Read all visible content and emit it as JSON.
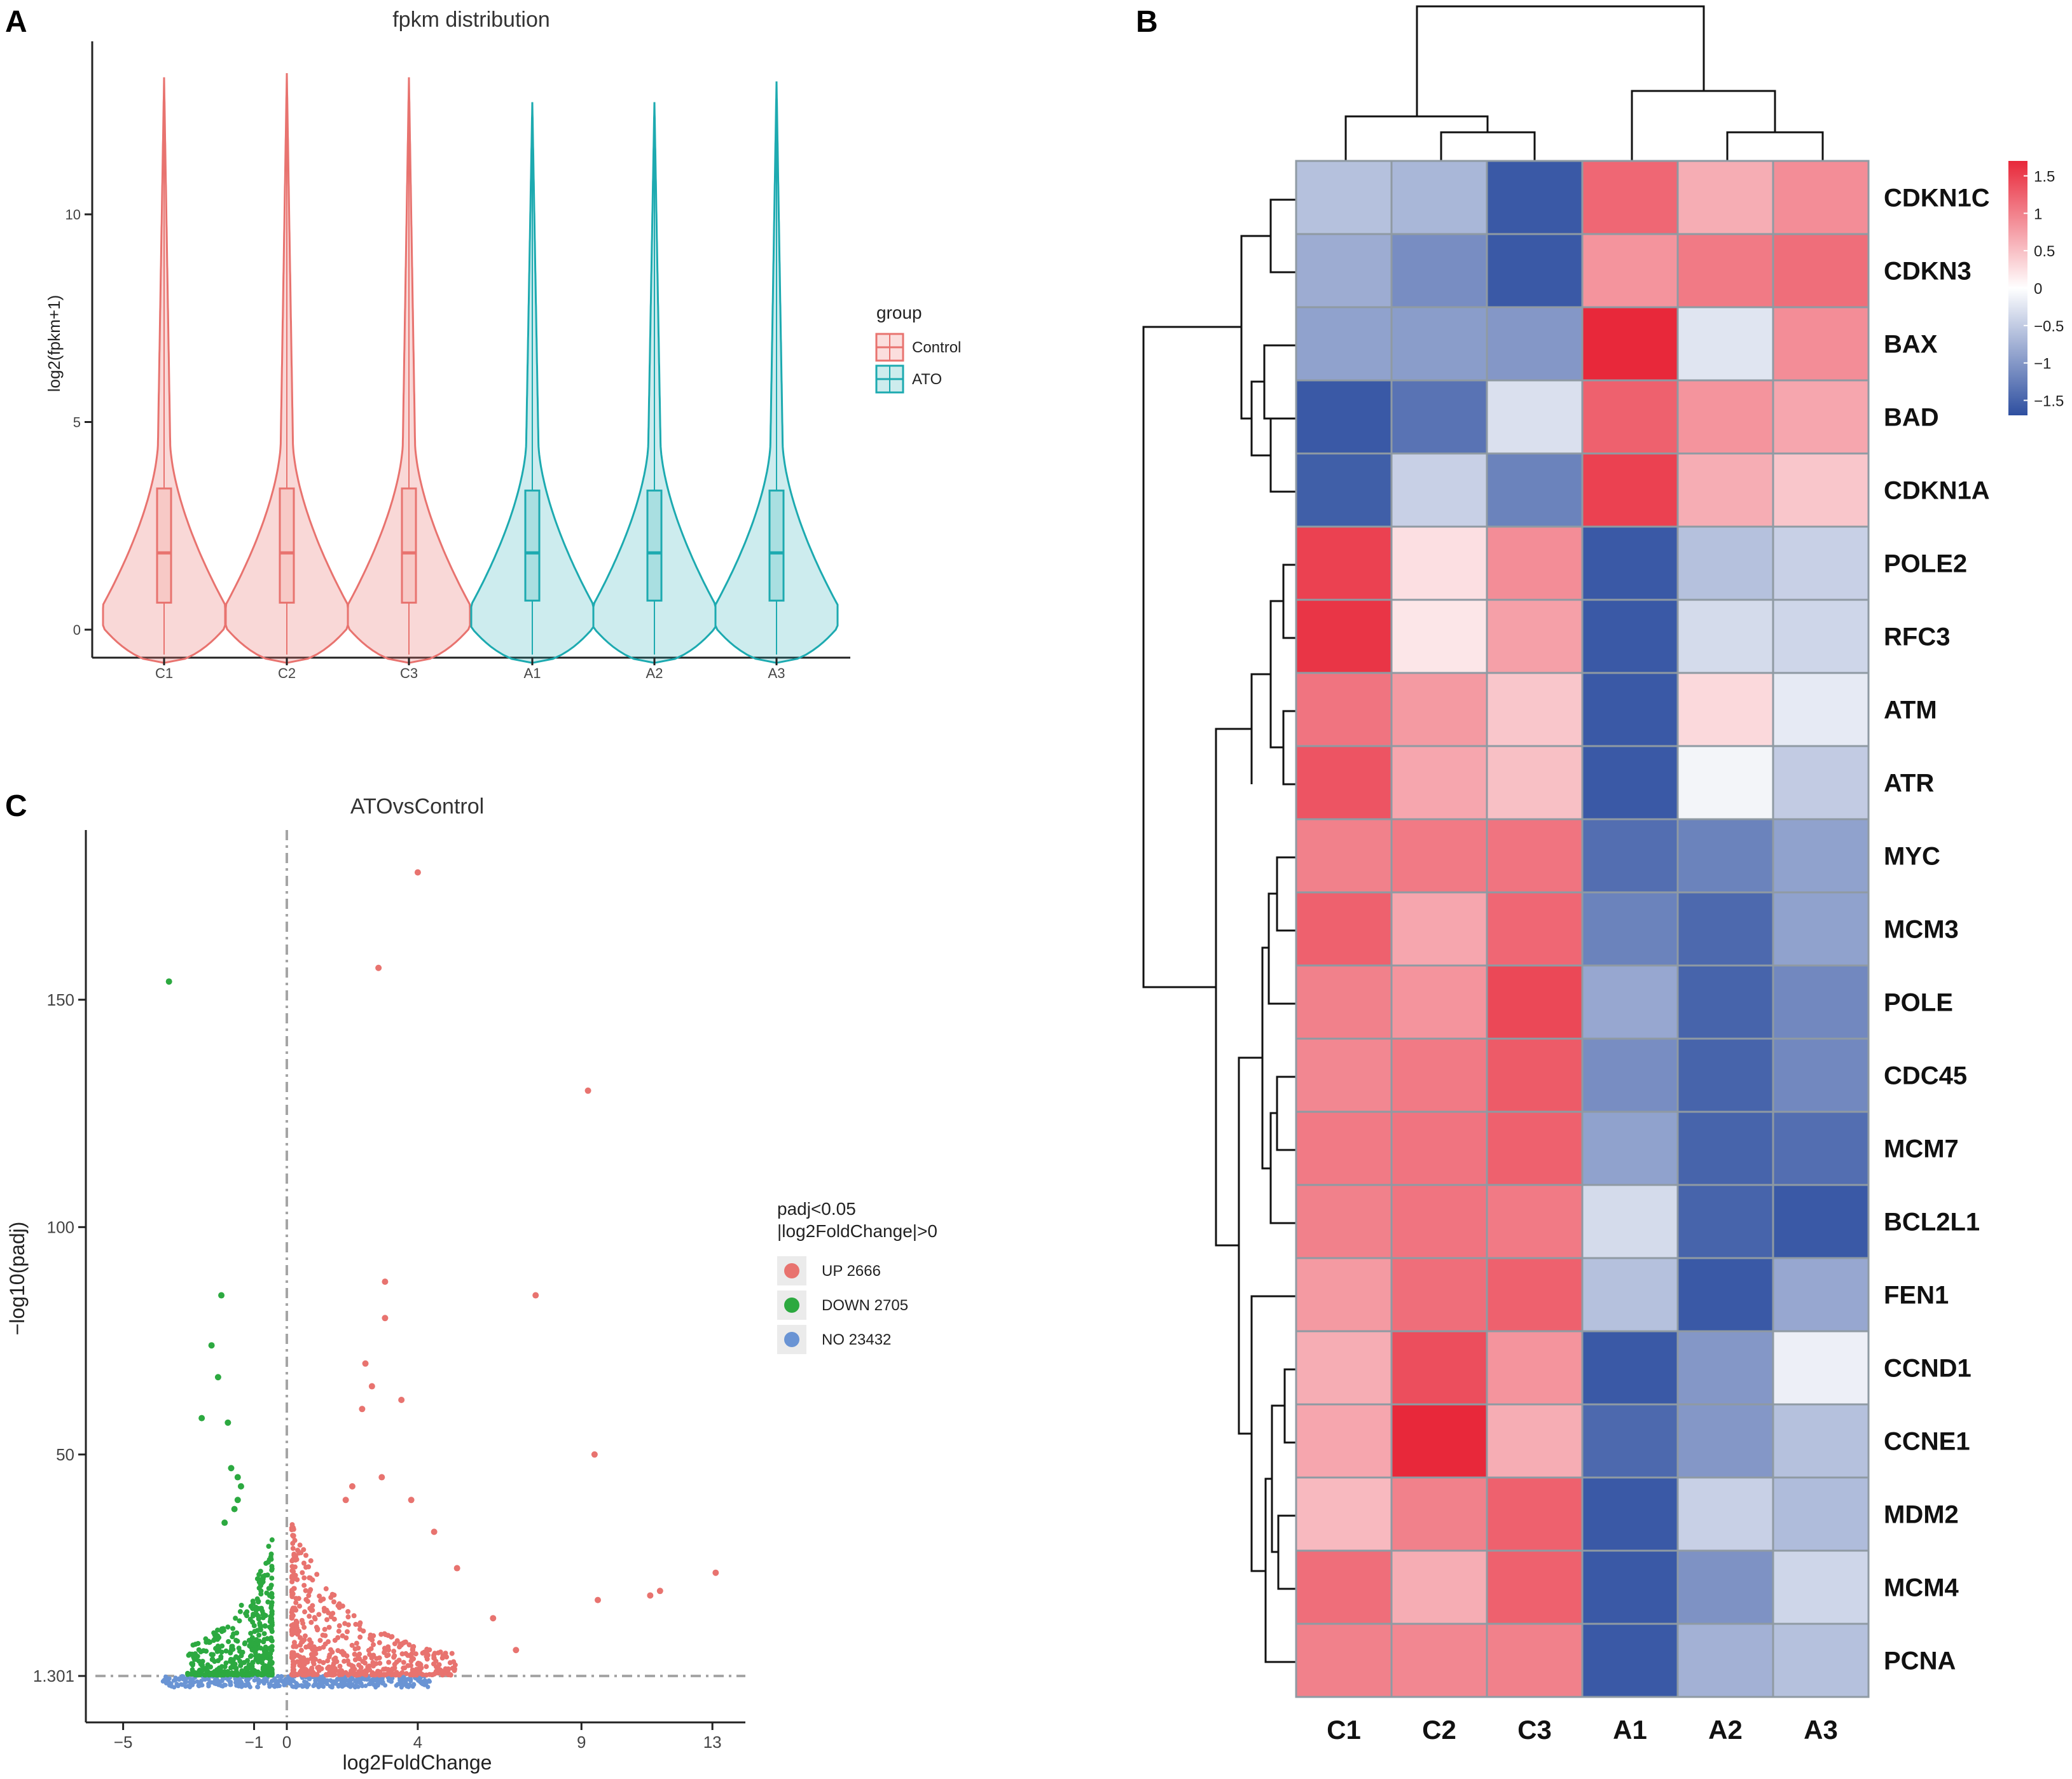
{
  "panels": {
    "a": {
      "letter": "A",
      "title": "fpkm distribution",
      "ylabel": "log2(fpkm+1)",
      "legend_title": "group",
      "legend_items": [
        {
          "label": "Control",
          "color": "#E8736F"
        },
        {
          "label": "ATO",
          "color": "#1DAAB0"
        }
      ]
    },
    "b": {
      "letter": "B"
    },
    "c": {
      "letter": "C",
      "title": "ATOvsControl",
      "xlabel": "log2FoldChange",
      "ylabel": "−log10(padj)",
      "legend_title_1": "padj<0.05",
      "legend_title_2": "|log2FoldChange|>0",
      "legend_items": [
        {
          "label": "UP 2666",
          "color": "#E8736F"
        },
        {
          "label": "DOWN 2705",
          "color": "#2CA940"
        },
        {
          "label": "NO 23432",
          "color": "#6A94D4"
        }
      ]
    }
  },
  "chart_data": [
    {
      "type": "violin",
      "title": "fpkm distribution",
      "xlabel": "",
      "ylabel": "log2(fpkm+1)",
      "categories": [
        "C1",
        "C2",
        "C3",
        "A1",
        "A2",
        "A3"
      ],
      "groups": [
        "Control",
        "Control",
        "Control",
        "ATO",
        "ATO",
        "ATO"
      ],
      "ymax": [
        13.3,
        13.4,
        13.3,
        12.7,
        12.7,
        13.2
      ],
      "box": {
        "median": [
          1.85,
          1.85,
          1.85,
          1.85,
          1.85,
          1.85
        ],
        "q1": [
          0.65,
          0.65,
          0.65,
          0.7,
          0.7,
          0.7
        ],
        "q3": [
          3.4,
          3.4,
          3.4,
          3.35,
          3.35,
          3.35
        ]
      },
      "ylim": [
        -0.8,
        14
      ],
      "yticks": [
        0,
        5,
        10
      ]
    },
    {
      "type": "heatmap",
      "rows": [
        "CDKN1C",
        "CDKN3",
        "BAX",
        "BAD",
        "CDKN1A",
        "POLE2",
        "RFC3",
        "ATM",
        "ATR",
        "MYC",
        "MCM3",
        "POLE",
        "CDC45",
        "MCM7",
        "BCL2L1",
        "FEN1",
        "CCND1",
        "CCNE1",
        "MDM2",
        "MCM4",
        "PCNA"
      ],
      "columns": [
        "C1",
        "C2",
        "C3",
        "A1",
        "A2",
        "A3"
      ],
      "values": [
        [
          -0.6,
          -0.7,
          -1.6,
          1.2,
          0.65,
          0.9
        ],
        [
          -0.8,
          -1.1,
          -1.6,
          0.85,
          1.05,
          1.15
        ],
        [
          -0.9,
          -0.95,
          -1.0,
          1.7,
          -0.25,
          0.9
        ],
        [
          -1.6,
          -1.35,
          -0.3,
          1.25,
          0.85,
          0.7
        ],
        [
          -1.55,
          -0.45,
          -1.2,
          1.5,
          0.65,
          0.45
        ],
        [
          1.5,
          0.25,
          0.9,
          -1.6,
          -0.6,
          -0.45
        ],
        [
          1.6,
          0.2,
          0.75,
          -1.6,
          -0.35,
          -0.4
        ],
        [
          1.1,
          0.8,
          0.45,
          -1.6,
          0.3,
          -0.2
        ],
        [
          1.35,
          0.7,
          0.5,
          -1.6,
          -0.1,
          -0.5
        ],
        [
          1.0,
          1.05,
          1.1,
          -1.4,
          -1.2,
          -0.9
        ],
        [
          1.25,
          0.7,
          1.2,
          -1.2,
          -1.45,
          -0.9
        ],
        [
          1.0,
          0.85,
          1.45,
          -0.85,
          -1.5,
          -1.15
        ],
        [
          0.95,
          1.05,
          1.3,
          -1.1,
          -1.5,
          -1.15
        ],
        [
          1.05,
          1.1,
          1.25,
          -0.9,
          -1.5,
          -1.4
        ],
        [
          1.0,
          1.1,
          1.05,
          -0.35,
          -1.5,
          -1.6
        ],
        [
          0.8,
          1.15,
          1.25,
          -0.6,
          -1.6,
          -0.85
        ],
        [
          0.65,
          1.4,
          0.85,
          -1.6,
          -1.0,
          -0.15
        ],
        [
          0.7,
          1.7,
          0.65,
          -1.45,
          -1.0,
          -0.6
        ],
        [
          0.55,
          1.0,
          1.25,
          -1.6,
          -0.45,
          -0.65
        ],
        [
          1.15,
          0.65,
          1.25,
          -1.6,
          -1.05,
          -0.4
        ],
        [
          1.0,
          0.95,
          1.0,
          -1.6,
          -0.75,
          -0.6
        ]
      ],
      "colorbar": {
        "ticks": [
          1.5,
          1,
          0.5,
          0,
          -0.5,
          -1,
          -1.5
        ],
        "tick_labels": [
          "1.5",
          "1",
          "0.5",
          "0",
          "−0.5",
          "−1",
          "−1.5"
        ],
        "range": [
          -1.7,
          1.7
        ],
        "low_color": "#2E4FA0",
        "mid_color": "#FFFFFF",
        "high_color": "#E8283A"
      }
    },
    {
      "type": "scatter",
      "title": "ATOvsControl",
      "xlabel": "log2FoldChange",
      "ylabel": "−log10(padj)",
      "xlim": [
        -6.5,
        14.2
      ],
      "ylim": [
        -8,
        185
      ],
      "xticks": [
        -5,
        -1,
        0,
        4,
        9,
        13
      ],
      "yticks": [
        1.301,
        50,
        100,
        150
      ],
      "ytick_labels": [
        "1.301",
        "50",
        "100",
        "150"
      ],
      "threshold_y": 1.301,
      "threshold_x": 0,
      "series": [
        {
          "name": "UP",
          "count": 2666,
          "color": "#E8736F",
          "x": [
            4.0,
            2.8,
            9.2,
            7.6,
            3.0,
            3.0,
            9.4,
            13.1,
            11.4,
            11.1,
            9.5,
            2.4,
            2.6,
            2.3,
            2.9,
            3.5,
            3.8,
            4.5,
            5.2,
            6.3,
            7.0,
            1.8,
            2.0
          ],
          "y": [
            178,
            157,
            130,
            85,
            88,
            80,
            50,
            24,
            20,
            19,
            18,
            70,
            65,
            60,
            45,
            62,
            40,
            33,
            25,
            14,
            7,
            40,
            43
          ]
        },
        {
          "name": "DOWN",
          "count": 2705,
          "color": "#2CA940",
          "x": [
            -3.6,
            -2.0,
            -2.3,
            -2.1,
            -2.6,
            -1.8,
            -1.7,
            -1.5,
            -1.4,
            -1.5,
            -1.6,
            -1.9
          ],
          "y": [
            154,
            85,
            74,
            67,
            58,
            57,
            47,
            45,
            43,
            40,
            38,
            35
          ]
        },
        {
          "name": "NO",
          "count": 23432,
          "color": "#6A94D4",
          "x": [],
          "y": []
        }
      ]
    }
  ]
}
